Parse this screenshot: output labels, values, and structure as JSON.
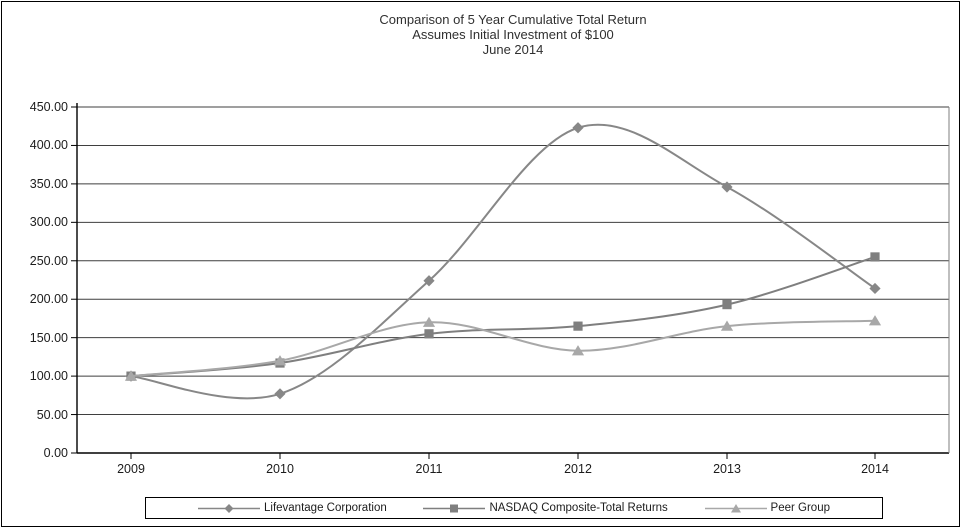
{
  "title": {
    "line1": "Comparison of 5 Year Cumulative Total Return",
    "line2": "Assumes Initial Investment of $100",
    "line3": "June 2014"
  },
  "chart_data": {
    "type": "line",
    "smoothed": true,
    "categories": [
      "2009",
      "2010",
      "2011",
      "2012",
      "2013",
      "2014"
    ],
    "series": [
      {
        "name": "Lifevantage Corporation",
        "marker": "diamond",
        "color": "#878787",
        "values": [
          100,
          77,
          224,
          423,
          346,
          214
        ]
      },
      {
        "name": "NASDAQ Composite-Total Returns",
        "marker": "square",
        "color": "#7f7f7f",
        "values": [
          100,
          117,
          155,
          165,
          193,
          255
        ]
      },
      {
        "name": "Peer Group",
        "marker": "triangle",
        "color": "#a8a8a8",
        "values": [
          100,
          120,
          170,
          133,
          165,
          172
        ]
      }
    ],
    "ylim": [
      0,
      450
    ],
    "y_tick_step": 50,
    "y_tick_labels": [
      "0.00",
      "50.00",
      "100.00",
      "150.00",
      "200.00",
      "250.00",
      "300.00",
      "350.00",
      "400.00",
      "450.00"
    ],
    "grid": "horizontal",
    "legend_position": "bottom",
    "axis_color": "#000000",
    "gridline_color": "#3f3f3f",
    "plot_right_border_color": "#7f7f7f"
  }
}
